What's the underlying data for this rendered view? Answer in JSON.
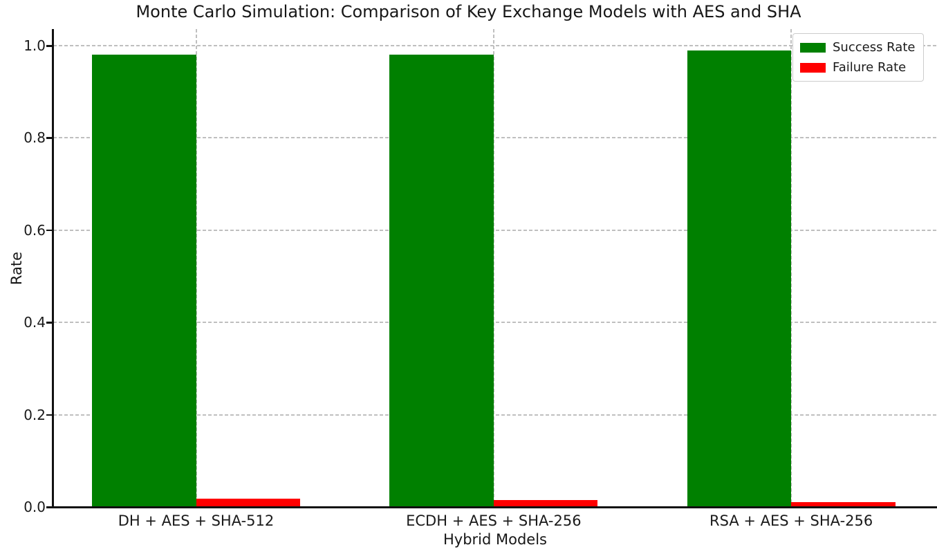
{
  "chart_data": {
    "type": "bar",
    "title": "Monte Carlo Simulation: Comparison of Key Exchange Models with AES and SHA",
    "xlabel": "Hybrid Models",
    "ylabel": "Rate",
    "categories": [
      "DH + AES + SHA-512",
      "ECDH + AES + SHA-256",
      "RSA + AES + SHA-256"
    ],
    "series": [
      {
        "name": "Success Rate",
        "color": "#008000",
        "values": [
          0.98,
          0.98,
          0.99
        ]
      },
      {
        "name": "Failure Rate",
        "color": "#ff0000",
        "values": [
          0.018,
          0.015,
          0.01
        ]
      }
    ],
    "ylim": [
      0.0,
      1.036
    ],
    "yticks": [
      0.0,
      0.2,
      0.4,
      0.6,
      0.8,
      1.0
    ],
    "ytick_labels": [
      "0.0",
      "0.2",
      "0.4",
      "0.6",
      "0.8",
      "1.0"
    ],
    "grid": true,
    "grid_style": "dashed",
    "legend_position": "upper right",
    "legend_items": [
      "Success Rate",
      "Failure Rate"
    ]
  }
}
